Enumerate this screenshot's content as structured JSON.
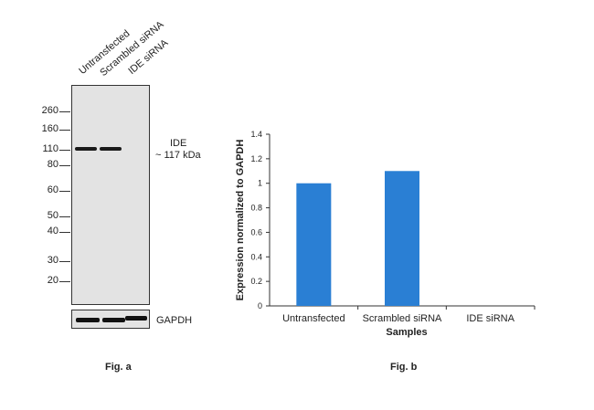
{
  "figure_a": {
    "lane_labels": [
      "Untransfected",
      "Scrambled siRNA",
      "IDE siRNA"
    ],
    "mw_markers": [
      "260",
      "160",
      "110",
      "80",
      "60",
      "50",
      "40",
      "30",
      "20"
    ],
    "target_name": "IDE",
    "target_size": "~ 117 kDa",
    "loading_control": "GAPDH",
    "caption": "Fig. a"
  },
  "figure_b": {
    "caption": "Fig. b"
  },
  "chart_data": {
    "type": "bar",
    "categories": [
      "Untransfected",
      "Scrambled siRNA",
      "IDE siRNA"
    ],
    "values": [
      1.0,
      1.1,
      0.0
    ],
    "xlabel": "Samples",
    "ylabel": "Expression normalized to GAPDH",
    "ylim": [
      0,
      1.4
    ],
    "yticks": [
      "0",
      "0.2",
      "0.4",
      "0.6",
      "0.8",
      "1",
      "1.2",
      "1.4"
    ],
    "bar_color": "#2a7fd4",
    "grid": false
  }
}
